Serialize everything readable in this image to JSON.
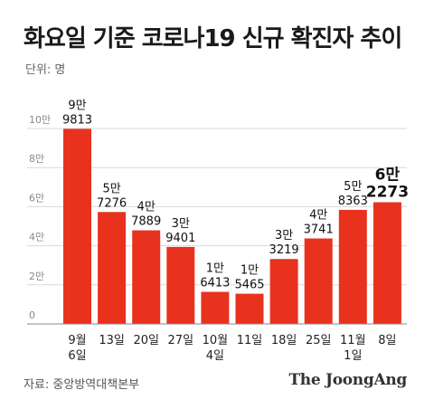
{
  "title": "화요일 기준 코로나19 신규 확진자 추이",
  "unit": "단위: 명",
  "source": "자료: 중앙방역대책본부",
  "brand": "The JoongAng",
  "colors": {
    "bar": "#e8321e",
    "grid": "#d9d9d9",
    "axis": "#888888",
    "tick": "#888888"
  },
  "chart_data": {
    "type": "bar",
    "categories": [
      "9월 6일",
      "13일",
      "20일",
      "27일",
      "10월 4일",
      "11일",
      "18일",
      "25일",
      "11월 1일",
      "8일"
    ],
    "category_lines": [
      [
        "9월",
        "6일"
      ],
      [
        "13일"
      ],
      [
        "20일"
      ],
      [
        "27일"
      ],
      [
        "10월",
        "4일"
      ],
      [
        "11일"
      ],
      [
        "18일"
      ],
      [
        "25일"
      ],
      [
        "11월",
        "1일"
      ],
      [
        "8일"
      ]
    ],
    "values": [
      99813,
      57276,
      47889,
      39401,
      16413,
      15465,
      33219,
      43741,
      58363,
      62273
    ],
    "data_labels": [
      [
        "9만",
        "9813"
      ],
      [
        "5만",
        "7276"
      ],
      [
        "4만",
        "7889"
      ],
      [
        "3만",
        "9401"
      ],
      [
        "1만",
        "6413"
      ],
      [
        "1만",
        "5465"
      ],
      [
        "3만",
        "3219"
      ],
      [
        "4만",
        "3741"
      ],
      [
        "5만",
        "8363"
      ],
      [
        "6만",
        "2273"
      ]
    ],
    "highlight_index": 9,
    "yticks": [
      0,
      20000,
      40000,
      60000,
      80000,
      100000
    ],
    "ytick_labels": [
      "0",
      "2만",
      "4만",
      "6만",
      "8만",
      "10만"
    ],
    "ylim": [
      0,
      100000
    ],
    "grid": true
  }
}
